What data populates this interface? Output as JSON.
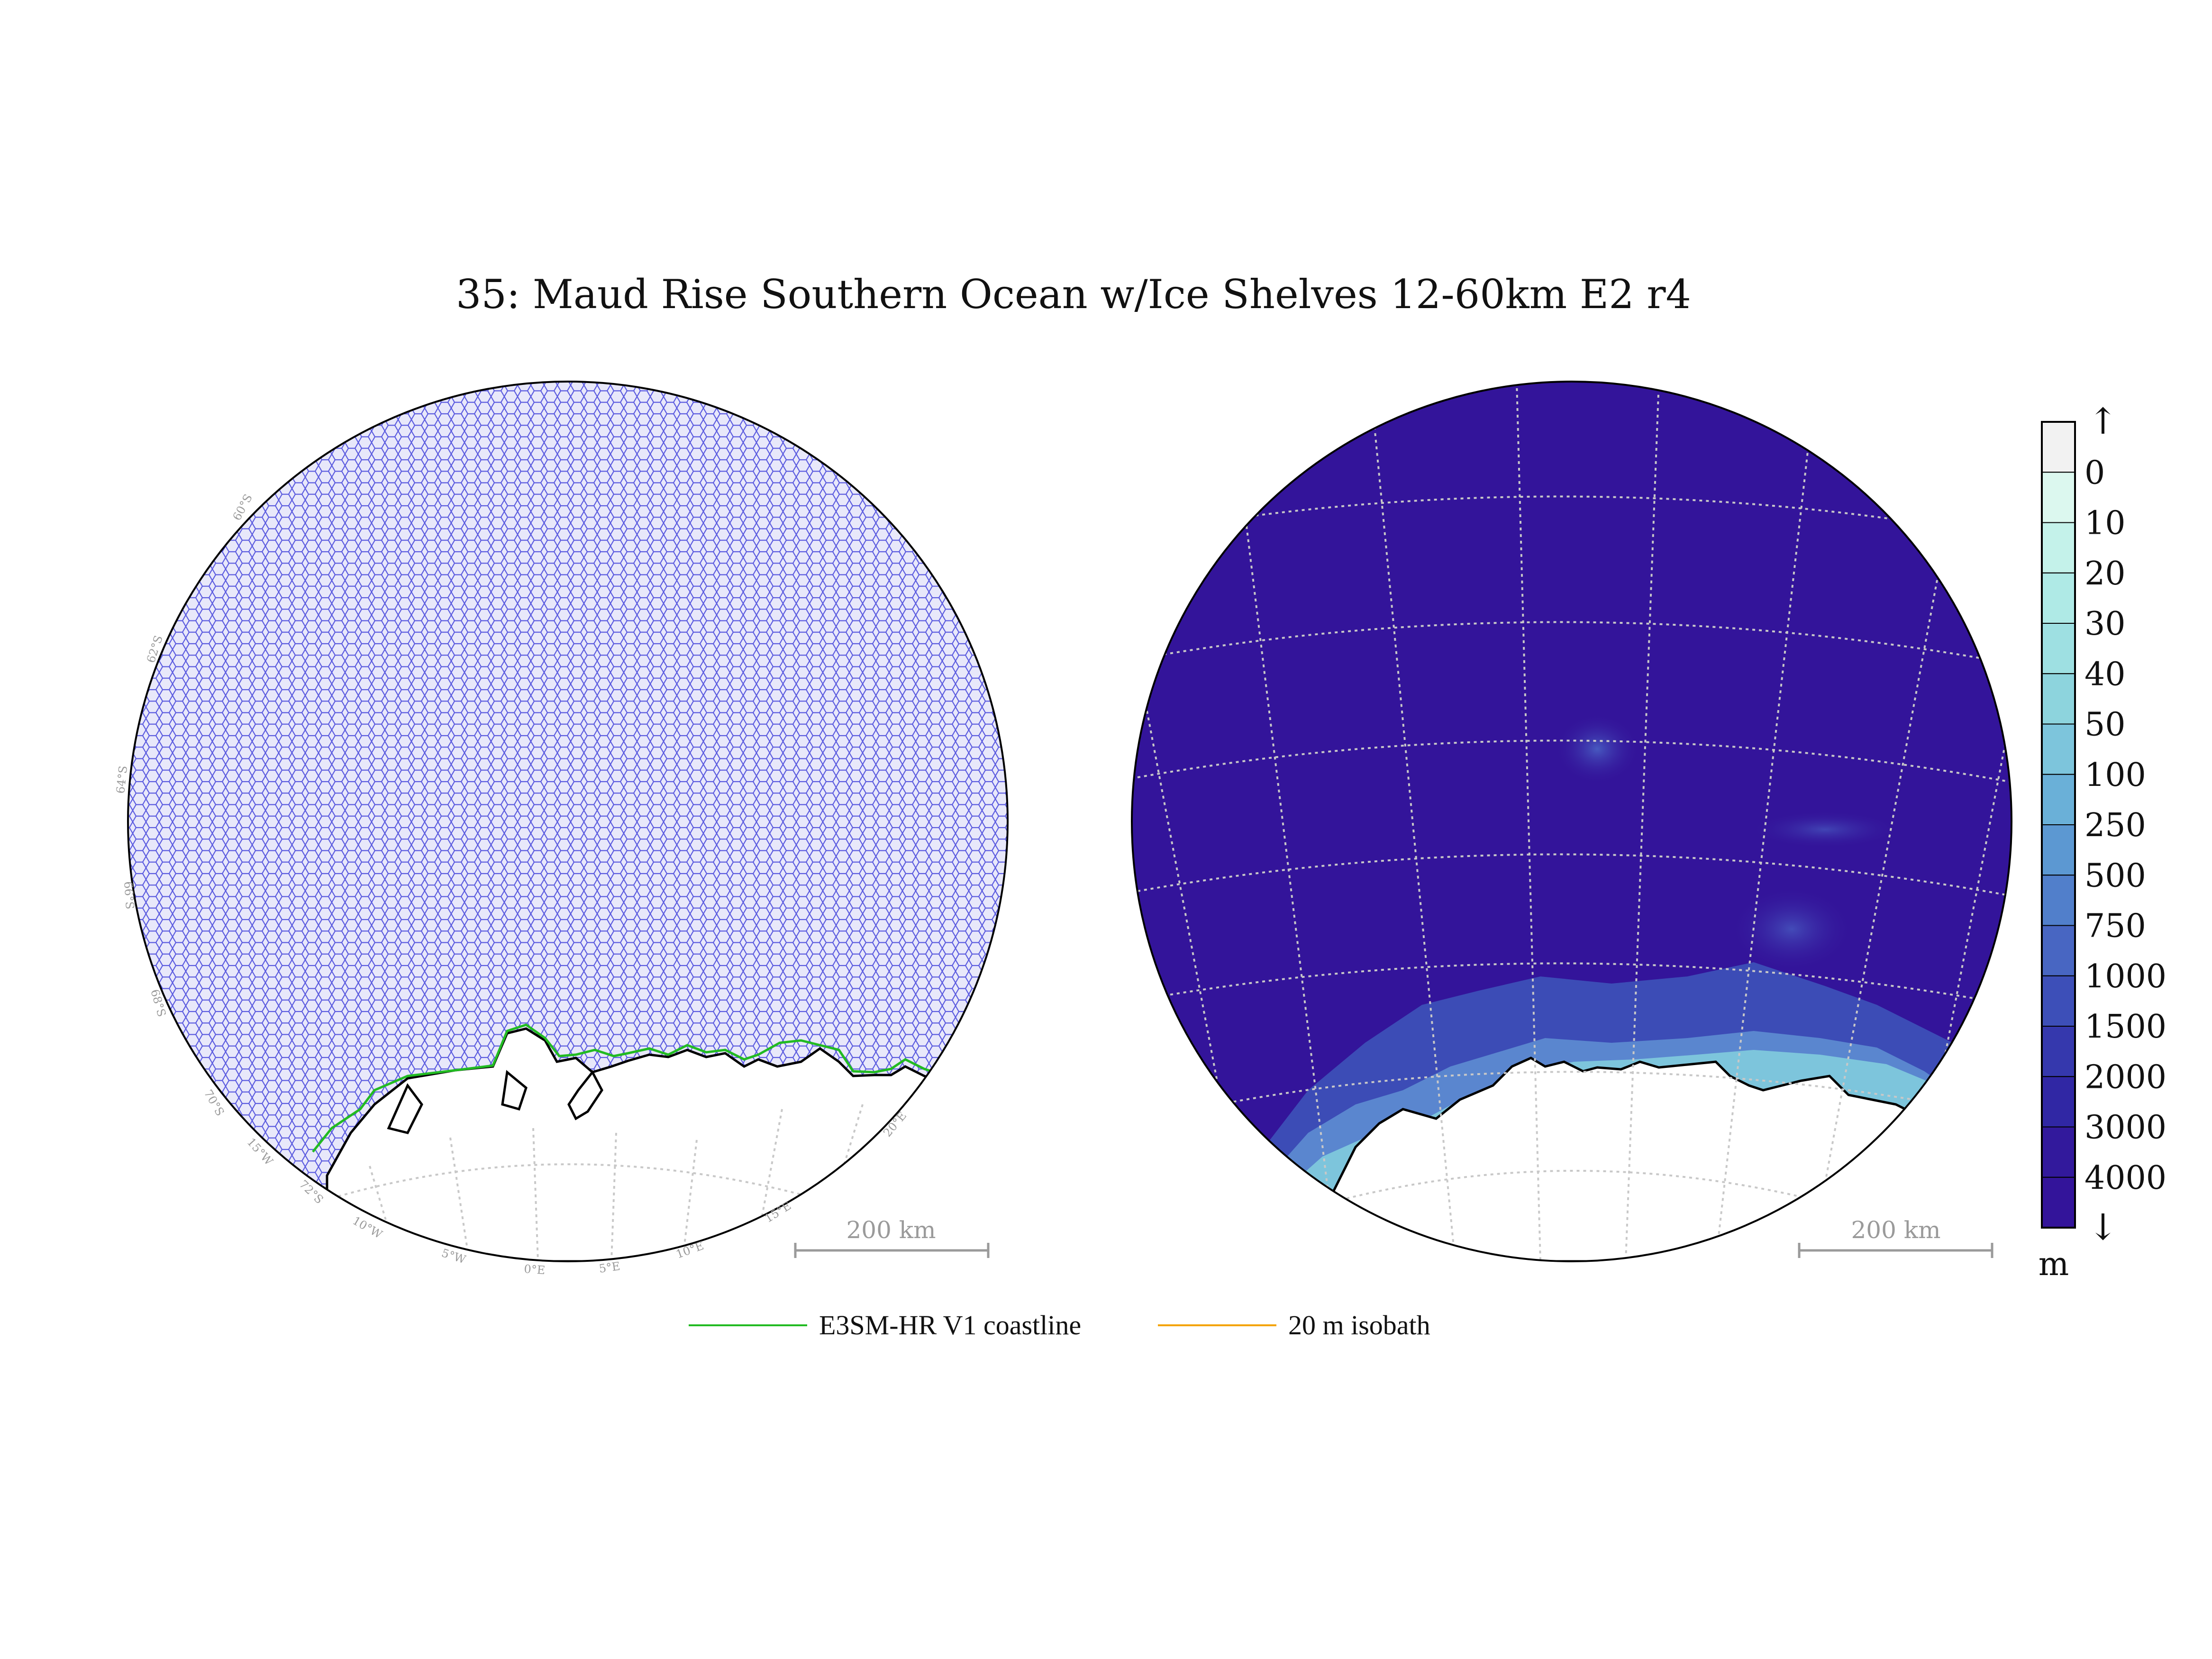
{
  "title": "35: Maud Rise Southern Ocean w/Ice Shelves 12-60km E2 r4",
  "colors": {
    "mesh_fill": "#e8e8fa",
    "mesh_line": "#2b2bd6",
    "land": "#ffffff",
    "ocean_deep": "#33149a",
    "e3sm_coastline": "#22bb22",
    "isobath_20m": "#f4a300",
    "graticule": "#c8c8c8"
  },
  "left_map": {
    "lat_labels": [
      "60°S",
      "62°S",
      "64°S",
      "66°S",
      "68°S",
      "70°S",
      "72°S"
    ],
    "lon_labels": [
      "15°W",
      "10°W",
      "5°W",
      "0°E",
      "5°E",
      "10°E",
      "15°E",
      "20°E"
    ],
    "scale_bar": "200 km"
  },
  "right_map": {
    "scale_bar": "200 km"
  },
  "colorbar": {
    "arrow_top": "↑",
    "arrow_bottom": "↓",
    "unit": "m",
    "bins": [
      {
        "label": "0",
        "color": "#f2f2f2"
      },
      {
        "label": "10",
        "color": "#dcf8ef"
      },
      {
        "label": "20",
        "color": "#c4f2ea"
      },
      {
        "label": "30",
        "color": "#afeae6"
      },
      {
        "label": "40",
        "color": "#9ee0e2"
      },
      {
        "label": "50",
        "color": "#8dd4dd"
      },
      {
        "label": "100",
        "color": "#7dc5dc"
      },
      {
        "label": "250",
        "color": "#6ab0d8"
      },
      {
        "label": "500",
        "color": "#5c98d2"
      },
      {
        "label": "750",
        "color": "#517fcb"
      },
      {
        "label": "1000",
        "color": "#4866c2"
      },
      {
        "label": "1500",
        "color": "#3d4fb8"
      },
      {
        "label": "2000",
        "color": "#3538ad"
      },
      {
        "label": "3000",
        "color": "#3027a4"
      },
      {
        "label": "4000",
        "color": "#32199c"
      },
      {
        "label": "",
        "color": "#33149a"
      }
    ]
  },
  "legend": [
    {
      "label": "E3SM-HR V1 coastline",
      "color": "#22bb22"
    },
    {
      "label": "20 m isobath",
      "color": "#f4a300"
    }
  ]
}
